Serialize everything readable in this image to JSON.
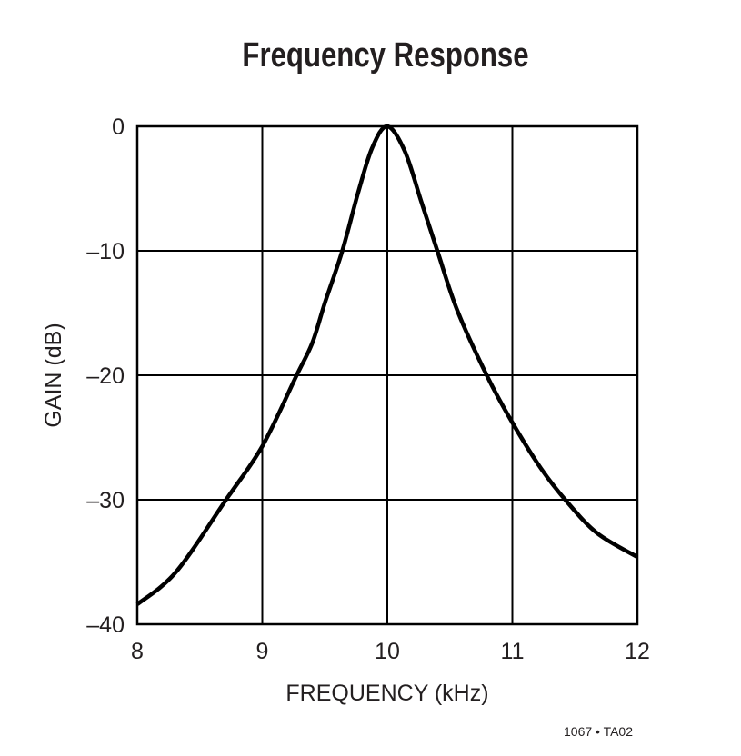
{
  "chart_data": {
    "type": "line",
    "title": "Frequency Response",
    "xlabel": "FREQUENCY (kHz)",
    "ylabel": "GAIN (dB)",
    "xlim": [
      8,
      12
    ],
    "ylim": [
      -40,
      0
    ],
    "x_ticks": [
      "8",
      "9",
      "10",
      "11",
      "12"
    ],
    "y_ticks": [
      "0",
      "–10",
      "–20",
      "–30",
      "–40"
    ],
    "grid": true,
    "series": [
      {
        "x": [
          8.0,
          8.31,
          8.71,
          9.0,
          9.27,
          9.4,
          9.5,
          9.64,
          9.77,
          9.88,
          10.0,
          10.14,
          10.27,
          10.4,
          10.56,
          10.8,
          11.0,
          11.23,
          11.44,
          11.68,
          12.0
        ],
        "y": [
          -38.4,
          -35.8,
          -30.0,
          -25.7,
          -20.1,
          -17.4,
          -14.2,
          -10.0,
          -5.2,
          -1.7,
          0.0,
          -2.0,
          -6.0,
          -10.0,
          -14.8,
          -20.1,
          -23.8,
          -27.5,
          -30.2,
          -32.7,
          -34.6
        ]
      }
    ],
    "line_color": "#000000"
  },
  "footer": "1067 • TA02"
}
